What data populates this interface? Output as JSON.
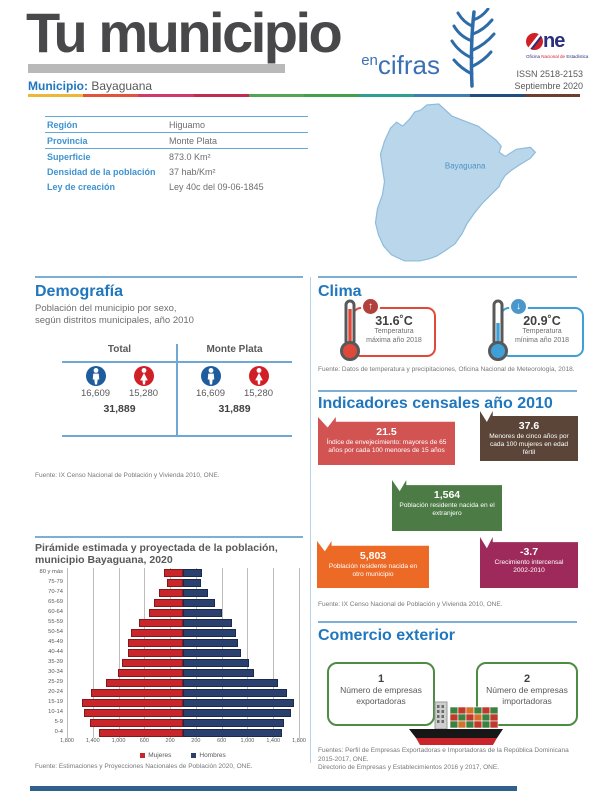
{
  "header": {
    "title": "Tu municipio",
    "subtitle_en": "en",
    "subtitle_cifras": "cifras",
    "issn": "ISSN 2518-2153",
    "date": "Septiembre 2020",
    "municipio_label": "Municipio:",
    "municipio_value": "Bayaguana",
    "one": {
      "ne": "ne",
      "caption_parts": [
        "Oficina",
        "Nacional de",
        "Estadística"
      ]
    },
    "stripe_colors": [
      "#ECB73B",
      "#E2523C",
      "#D2396B",
      "#C22B50",
      "#52A457",
      "#43A04F",
      "#2F9E93",
      "#3E7EB0",
      "#224E7E",
      "#6F3D2B"
    ]
  },
  "info_table": {
    "rows": [
      {
        "label": "Región",
        "value": "Higuamo"
      },
      {
        "label": "Provincia",
        "value": "Monte Plata"
      },
      {
        "label": "Superficie",
        "value": "873.0 Km²"
      },
      {
        "label": "Densidad de la población",
        "value": "37 hab/Km²"
      },
      {
        "label": "Ley de creación",
        "value": "Ley 40c del 09-06-1845"
      }
    ]
  },
  "map": {
    "label": "Bayaguana",
    "fill": "#b9d6ea",
    "stroke": "#8fbcdb"
  },
  "demography": {
    "title": "Demografía",
    "subtitle_line1": "Población del municipio por sexo,",
    "subtitle_line2": "según distritos municipales, año 2010",
    "columns": [
      {
        "header": "Total",
        "male": "16,609",
        "female": "15,280",
        "total": "31,889"
      },
      {
        "header": "Monte Plata",
        "male": "16,609",
        "female": "15,280",
        "total": "31,889"
      }
    ],
    "male_color": "#1e5c9e",
    "female_color": "#d01f26",
    "fuente": "Fuente: IX Censo Nacional de Población y Vivienda 2010, ONE."
  },
  "pyramid": {
    "title_line1": "Pirámide estimada y proyectada de la población,",
    "title_line2": "municipio Bayaguana, 2020",
    "fuente": "Fuente: Estimaciones y Proyecciones Nacionales de Población 2020, ONE."
  },
  "chart_data": {
    "type": "bar",
    "subtype": "population_pyramid",
    "title": "Pirámide estimada y proyectada de la población, municipio Bayaguana, 2020",
    "categories": [
      "0-4",
      "5-9",
      "10-14",
      "15-19",
      "20-24",
      "25-29",
      "30-34",
      "35-39",
      "40-44",
      "45-49",
      "50-54",
      "55-59",
      "60-64",
      "65-69",
      "70-74",
      "75-79",
      "80 y más"
    ],
    "categories_order": "youngest-first-displayed-bottom",
    "series": [
      {
        "name": "Mujeres",
        "color": "#C9262C",
        "values": [
          1300,
          1450,
          1530,
          1570,
          1430,
          1190,
          1010,
          940,
          860,
          850,
          800,
          690,
          530,
          450,
          380,
          250,
          290
        ]
      },
      {
        "name": "Hombres",
        "color": "#2A4170",
        "values": [
          1530,
          1560,
          1670,
          1720,
          1610,
          1480,
          1100,
          1030,
          900,
          850,
          820,
          760,
          600,
          490,
          390,
          280,
          300
        ]
      }
    ],
    "x_axis": {
      "max": 1800,
      "tick_values": [
        -1800,
        -1400,
        -1000,
        -600,
        -200,
        200,
        600,
        1000,
        1400,
        1800
      ],
      "tick_labels": [
        "1,800",
        "1,400",
        "1,000",
        "600",
        "200",
        "200",
        "600",
        "1,000",
        "1,400",
        "1,800"
      ]
    },
    "grid": true,
    "legend_position": "bottom"
  },
  "clima": {
    "title": "Clima",
    "cards": [
      {
        "value": "31.6˚C",
        "line1": "Temperatura",
        "line2": "máxima año 2018",
        "color": "#e0493a",
        "badge_color": "#b0413c",
        "arrow": "↑"
      },
      {
        "value": "20.9˚C",
        "line1": "Temperatura",
        "line2": "mínima año 2018",
        "color": "#3fa0d8",
        "badge_color": "#4b97cb",
        "arrow": "↓"
      }
    ],
    "fuente": "Fuente: Datos de temperatura y precipitaciones, Oficina Nacional de Meteorología, 2018."
  },
  "indicators": {
    "title": "Indicadores censales año 2010",
    "boxes": [
      {
        "value": "21.5",
        "label": "Índice de envejecimiento: mayores de 65 años por cada 100 menores de 15 años",
        "color": "#d25452"
      },
      {
        "value": "37.6",
        "label": "Menores de cinco años por cada 100 mujeres en edad fértil",
        "color": "#5a4538"
      },
      {
        "value": "1,564",
        "label": "Población residente nacida en el extranjero",
        "color": "#4c7b45"
      },
      {
        "value": "5,803",
        "label": "Población residente nacida en otro municipio",
        "color": "#ec6a26"
      },
      {
        "value": "-3.7",
        "label": "Crecimiento intercensal 2002-2010",
        "color": "#9e2a5c"
      }
    ],
    "fuente": "Fuente: IX Censo Nacional de Población y Vivienda 2010, ONE."
  },
  "trade": {
    "title": "Comercio exterior",
    "cards": [
      {
        "value": "1",
        "line1": "Número de empresas",
        "line2": "exportadoras"
      },
      {
        "value": "2",
        "line1": "Número de empresas",
        "line2": "importadoras"
      }
    ],
    "fuente_line1": "Fuentes: Perfil de Empresas Exportadoras e Importadoras de la República Dominicana",
    "fuente_line2": "2015-2017, ONE.",
    "fuente_line3": "Directorio de Empresas y Establecimientos 2016 y 2017, ONE."
  }
}
